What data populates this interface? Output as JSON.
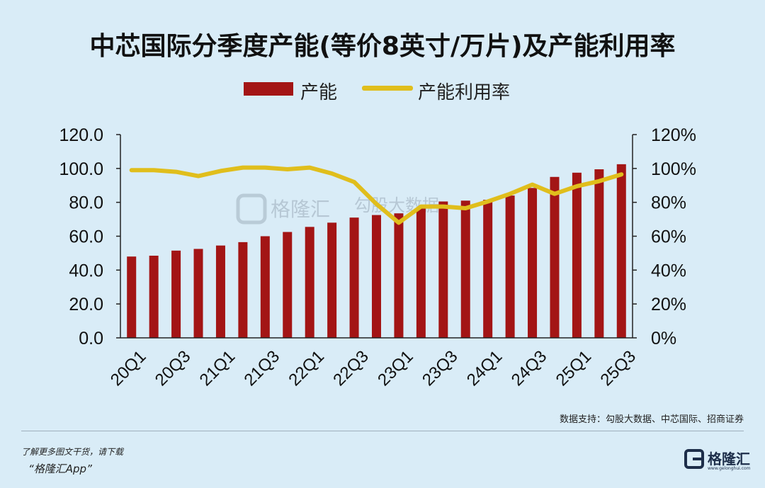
{
  "chart_data": {
    "type": "bar+line",
    "title": "中芯国际分季度产能(等价8英寸/万片)及产能利用率",
    "legend": [
      "产能",
      "产能利用率"
    ],
    "quarters": [
      "20Q1",
      "20Q2",
      "20Q3",
      "20Q4",
      "21Q1",
      "21Q2",
      "21Q3",
      "21Q4",
      "22Q1",
      "22Q2",
      "22Q3",
      "22Q4",
      "23Q1",
      "23Q2",
      "23Q3",
      "23Q4",
      "24Q1",
      "24Q2",
      "24Q3",
      "24Q4",
      "25Q1",
      "25Q2",
      "25Q3"
    ],
    "x_tick_labels": [
      "20Q1",
      "20Q3",
      "21Q1",
      "21Q3",
      "22Q1",
      "22Q3",
      "23Q1",
      "23Q3",
      "24Q1",
      "24Q3",
      "25Q1",
      "25Q3"
    ],
    "capacity": [
      48,
      48.5,
      51.5,
      52.5,
      54.5,
      56.5,
      60,
      62.5,
      65.5,
      68,
      71,
      72.5,
      73.5,
      76.5,
      80.5,
      81,
      81.5,
      84,
      88.5,
      95,
      97.5,
      99.5,
      102.5
    ],
    "utilization": [
      99,
      99,
      98,
      95.5,
      98.5,
      100.5,
      100.5,
      99.5,
      100.5,
      97,
      92,
      79,
      68,
      77.5,
      77.5,
      76.5,
      80.5,
      85,
      90.5,
      85,
      89.5,
      92.5,
      96.5
    ],
    "left_axis": {
      "range": [
        0,
        120
      ],
      "ticks": [
        "0.0",
        "20.0",
        "40.0",
        "60.0",
        "80.0",
        "100.0",
        "120.0"
      ]
    },
    "right_axis": {
      "range": [
        0,
        120
      ],
      "ticks": [
        "0%",
        "20%",
        "40%",
        "60%",
        "80%",
        "100%",
        "120%"
      ]
    },
    "colors": {
      "bar": "#a31515",
      "line": "#e0be1c"
    }
  },
  "watermark": {
    "brand": "格隆汇",
    "brand2": "勾股大数据"
  },
  "footer": {
    "source": "数据支持：勾股大数据、中芯国际、招商证券",
    "promo_line1": "了解更多图文干货，请下载",
    "promo_line2": "“格隆汇App”",
    "logo_name": "格隆汇",
    "logo_sub": "www.gelonghui.com"
  }
}
